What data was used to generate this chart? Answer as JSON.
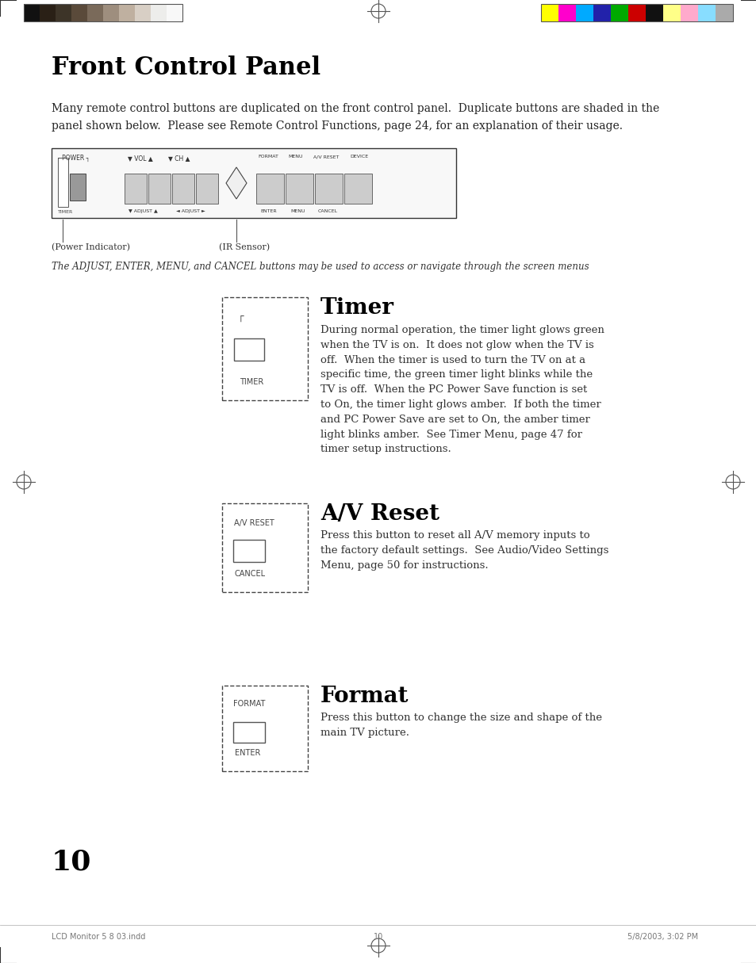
{
  "title": "Front Control Panel",
  "bg_color": "#ffffff",
  "text_color": "#000000",
  "page_number": "10",
  "intro_text": "Many remote control buttons are duplicated on the front control panel.  Duplicate buttons are shaded in the\npanel shown below.  Please see Remote Control Functions, page 24, for an explanation of their usage.",
  "caption_italic": "The ADJUST, ENTER, MENU, and CANCEL buttons may be used to access or navigate through the screen menus",
  "power_indicator_label": "(Power Indicator)",
  "ir_sensor_label": "(IR Sensor)",
  "section1_title": "Timer",
  "section1_body": "During normal operation, the timer light glows green\nwhen the TV is on.  It does not glow when the TV is\noff.  When the timer is used to turn the TV on at a\nspecific time, the green timer light blinks while the\nTV is off.  When the PC Power Save function is set\nto On, the timer light glows amber.  If both the timer\nand PC Power Save are set to On, the amber timer\nlight blinks amber.  See Timer Menu, page 47 for\ntimer setup instructions.",
  "section1_box_label": "TIMER",
  "section2_title": "A/V Reset",
  "section2_body": "Press this button to reset all A/V memory inputs to\nthe factory default settings.  See Audio/Video Settings\nMenu, page 50 for instructions.",
  "section2_box_label1": "A/V RESET",
  "section2_box_label2": "CANCEL",
  "section3_title": "Format",
  "section3_body": "Press this button to change the size and shape of the\nmain TV picture.",
  "section3_box_label1": "FORMAT",
  "section3_box_label2": "ENTER",
  "footer_left": "LCD Monitor 5 8 03.indd",
  "footer_center": "10",
  "footer_right": "5/8/2003, 3:02 PM",
  "color_bars_left": [
    "#111111",
    "#2a2016",
    "#3d3428",
    "#5a4a3a",
    "#7a6a5a",
    "#9e8e7e",
    "#bfb0a0",
    "#d8cfc5",
    "#ededeb",
    "#f8f8f8"
  ],
  "color_bars_right": [
    "#ffff00",
    "#ff00cc",
    "#00aaff",
    "#2222aa",
    "#00aa00",
    "#cc0000",
    "#111111",
    "#ffff88",
    "#ffaacc",
    "#88ddff",
    "#aaaaaa"
  ],
  "panel_border_color": "#555555",
  "dashed_box_color": "#555555",
  "button_fill": "#cccccc",
  "crosshair_color": "#555555"
}
